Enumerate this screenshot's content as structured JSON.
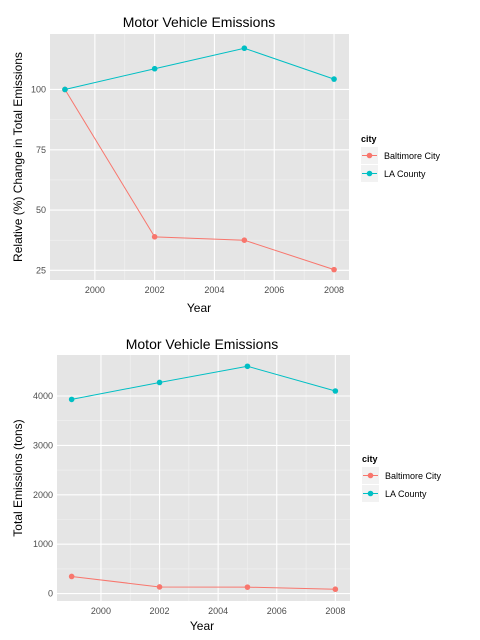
{
  "chart_data": [
    {
      "type": "line",
      "title": "Motor Vehicle Emissions",
      "xlabel": "Year",
      "ylabel": "Relative (%) Change in Total Emissions",
      "x": [
        1999,
        2002,
        2005,
        2008
      ],
      "xlim": [
        1998.5,
        2008.5
      ],
      "ylim": [
        21,
        123
      ],
      "x_ticks": [
        2000,
        2002,
        2004,
        2006,
        2008
      ],
      "y_ticks": [
        25,
        50,
        75,
        100
      ],
      "grid": true,
      "legend": {
        "title": "city",
        "placement": "right"
      },
      "series": [
        {
          "name": "Baltimore City",
          "color": "#F8766D",
          "values": [
            100,
            38.9,
            37.5,
            25.3
          ]
        },
        {
          "name": "LA County",
          "color": "#00BFC4",
          "values": [
            100,
            108.6,
            117.1,
            104.3
          ]
        }
      ]
    },
    {
      "type": "line",
      "title": "Motor Vehicle Emissions",
      "xlabel": "Year",
      "ylabel": "Total Emissions (tons)",
      "x": [
        1999,
        2002,
        2005,
        2008
      ],
      "xlim": [
        1998.5,
        2008.5
      ],
      "ylim": [
        -150,
        4830
      ],
      "x_ticks": [
        2000,
        2002,
        2004,
        2006,
        2008
      ],
      "y_ticks": [
        0,
        1000,
        2000,
        3000,
        4000
      ],
      "grid": true,
      "legend": {
        "title": "city",
        "placement": "right"
      },
      "series": [
        {
          "name": "Baltimore City",
          "color": "#F8766D",
          "values": [
            346.8,
            134.3,
            130.4,
            88.3
          ]
        },
        {
          "name": "LA County",
          "color": "#00BFC4",
          "values": [
            3931.1,
            4274.0,
            4601.4,
            4101.3
          ]
        }
      ]
    }
  ]
}
